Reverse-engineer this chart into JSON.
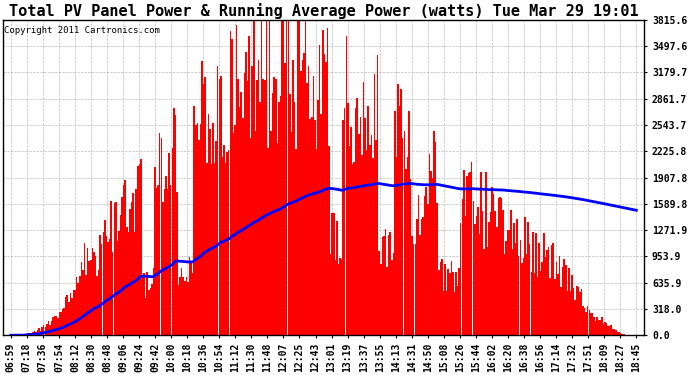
{
  "title": "Total PV Panel Power & Running Average Power (watts) Tue Mar 29 19:01",
  "copyright_text": "Copyright 2011 Cartronics.com",
  "y_max": 3815.6,
  "y_min": 0.0,
  "y_ticks": [
    0.0,
    318.0,
    635.9,
    953.9,
    1271.9,
    1589.8,
    1907.8,
    2225.8,
    2543.7,
    2861.7,
    3179.7,
    3497.6,
    3815.6
  ],
  "x_labels": [
    "06:59",
    "07:18",
    "07:36",
    "07:54",
    "08:12",
    "08:30",
    "08:48",
    "09:06",
    "09:24",
    "09:42",
    "10:00",
    "10:18",
    "10:36",
    "10:54",
    "11:12",
    "11:30",
    "11:48",
    "12:07",
    "12:25",
    "12:43",
    "13:01",
    "13:19",
    "13:37",
    "13:55",
    "14:13",
    "14:31",
    "14:50",
    "15:08",
    "15:26",
    "15:44",
    "16:02",
    "16:20",
    "16:38",
    "16:56",
    "17:14",
    "17:32",
    "17:51",
    "18:09",
    "18:27",
    "18:45"
  ],
  "n_labels": 40,
  "bar_color": "#FF0000",
  "line_color": "#0000FF",
  "background_color": "#FFFFFF",
  "grid_color": "#BBBBBB",
  "title_fontsize": 11,
  "tick_fontsize": 7,
  "copyright_fontsize": 6.5
}
